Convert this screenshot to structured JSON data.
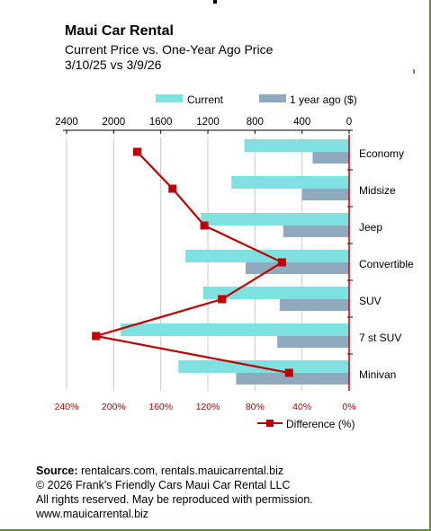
{
  "header": {
    "title": "Maui Car Rental",
    "subtitle": "Current Price vs. One-Year Ago Price",
    "date_range": "3/10/25 vs 3/9/26"
  },
  "chart_data": {
    "type": "bar",
    "orientation": "horizontal",
    "categories": [
      "Economy",
      "Midsize",
      "Jeep",
      "Convertible",
      "SUV",
      "7 st SUV",
      "Minivan"
    ],
    "series": [
      {
        "name": "Current",
        "color": "#7fe0e0",
        "values": [
          890,
          1000,
          1260,
          1390,
          1240,
          1940,
          1450
        ]
      },
      {
        "name": "1 year ago ($)",
        "color": "#8fa9bf",
        "values": [
          310,
          400,
          560,
          880,
          590,
          610,
          960
        ]
      },
      {
        "name": "Difference (%)",
        "type": "line",
        "color": "#c00000",
        "values": [
          180,
          150,
          123,
          57,
          108,
          215,
          51
        ]
      }
    ],
    "price_axis": {
      "ticks": [
        "2400",
        "2000",
        "1600",
        "1200",
        "800",
        "400",
        "0"
      ],
      "range": [
        0,
        2400
      ],
      "reversed": true
    },
    "percent_axis": {
      "ticks": [
        "240%",
        "200%",
        "160%",
        "120%",
        "80%",
        "40%",
        "0%"
      ],
      "range": [
        0,
        240
      ],
      "reversed": true,
      "color": "#c00000"
    },
    "legend_top": [
      "Current",
      "1 year ago ($)"
    ],
    "legend_bottom": "Difference (%)",
    "grid": true
  },
  "footer": {
    "source_label": "Source:",
    "source_text": " rentalcars.com, rentals.mauicarrental.biz",
    "copyright": "© 2026 Frank's Friendly Cars Maui Car Rental LLC",
    "rights": "All rights reserved. May be reproduced with permission.",
    "website": "www.mauicarrental.biz"
  }
}
